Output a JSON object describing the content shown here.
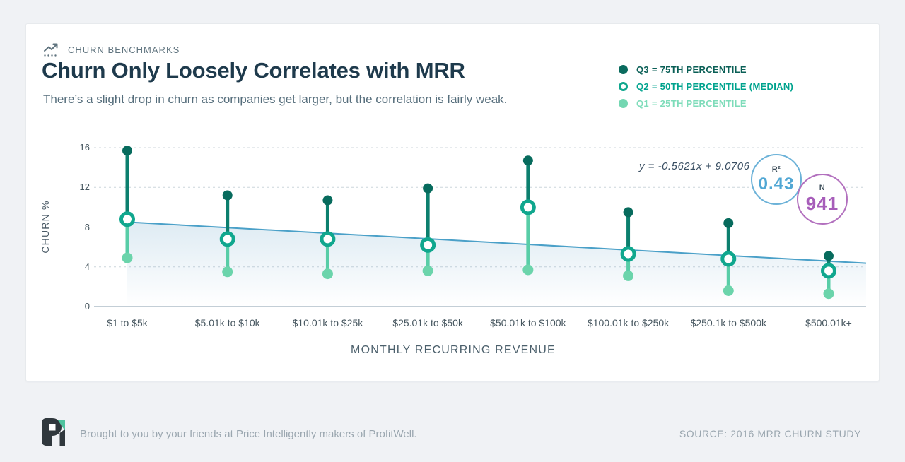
{
  "header": {
    "eyebrow": "CHURN BENCHMARKS",
    "title": "Churn Only Loosely Correlates with MRR",
    "subtitle": "There’s a slight drop in churn as companies get larger, but the correlation is fairly weak."
  },
  "legend": [
    {
      "label": "Q3 = 75TH PERCENTILE",
      "marker": "filled",
      "color": "#0a6b5e",
      "text_color": "#0a5f56"
    },
    {
      "label": "Q2 = 50TH PERCENTILE (MEDIAN)",
      "marker": "open",
      "color": "#10a78e",
      "text_color": "#00a38e"
    },
    {
      "label": "Q1 = 25TH PERCENTILE",
      "marker": "filled",
      "color": "#74d7b2",
      "text_color": "#7edcba"
    }
  ],
  "chart_data": {
    "type": "scatter",
    "subtype": "dot-range-plot",
    "title": "Churn Only Loosely Correlates with MRR",
    "xlabel": "MONTHLY RECURRING REVENUE",
    "ylabel": "CHURN %",
    "categories": [
      "$1 to $5k",
      "$5.01k to $10k",
      "$10.01k to $25k",
      "$25.01k to $50k",
      "$50.01k to $100k",
      "$100.01k to $250k",
      "$250.1k to $500k",
      "$500.01k+"
    ],
    "series": [
      {
        "name": "Q3 (75th percentile)",
        "color": "#076b5d",
        "stem_color": "#0c7f6e",
        "values": [
          15.7,
          11.2,
          10.7,
          11.9,
          14.7,
          9.5,
          8.4,
          5.1
        ]
      },
      {
        "name": "Q2 (50th percentile, median)",
        "color": "#10a78e",
        "values": [
          8.8,
          6.8,
          6.8,
          6.2,
          10.0,
          5.3,
          4.8,
          3.6
        ]
      },
      {
        "name": "Q1 (25th percentile)",
        "color": "#6bd4ab",
        "stem_color": "#58cda7",
        "values": [
          4.9,
          3.5,
          3.3,
          3.6,
          3.7,
          3.1,
          1.6,
          1.3
        ]
      }
    ],
    "yticks": [
      0,
      4,
      8,
      12,
      16
    ],
    "ylim": [
      0,
      16.5
    ],
    "grid": "dashed horizontal",
    "legend_position": "top-right",
    "trendline": {
      "equation": "y = -0.5621x + 9.0706",
      "slope": -0.5621,
      "intercept": 9.0706,
      "color": "#4aa0c8"
    },
    "r_squared": {
      "label": "R²",
      "value": "0.43"
    },
    "sample_size": {
      "label": "N",
      "value": "941"
    }
  },
  "footer": {
    "credit": "Brought to you by your friends at Price Intelligently makers of ProfitWell.",
    "source": "SOURCE: 2016 MRR CHURN STUDY"
  }
}
